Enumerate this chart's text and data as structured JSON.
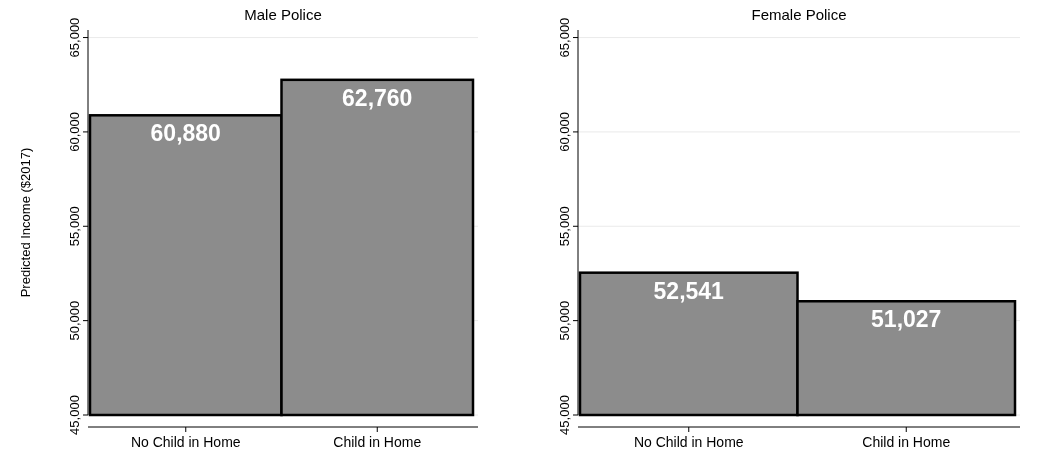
{
  "chart_data": [
    {
      "type": "bar",
      "title": "Male Police",
      "ylabel": "Predicted Income ($2017)",
      "categories": [
        "No Child in Home",
        "Child in Home"
      ],
      "values": [
        60880,
        62760
      ],
      "color": "#8c8c8c",
      "ylim": [
        45000,
        65400
      ],
      "yticks": [
        {
          "value": 45000,
          "label": "45,000"
        },
        {
          "value": 50000,
          "label": "50,000"
        },
        {
          "value": 55000,
          "label": "55,000"
        },
        {
          "value": 60000,
          "label": "60,000"
        },
        {
          "value": 65000,
          "label": "65,000"
        }
      ],
      "grid": "y",
      "value_labels": [
        "60,880",
        "62,760"
      ]
    },
    {
      "type": "bar",
      "title": "Female Police",
      "categories": [
        "No Child in Home",
        "Child in Home"
      ],
      "values": [
        52541,
        51027
      ],
      "color": "#8c8c8c",
      "ylim": [
        45000,
        65400
      ],
      "yticks": [
        {
          "value": 45000,
          "label": "45,000"
        },
        {
          "value": 50000,
          "label": "50,000"
        },
        {
          "value": 55000,
          "label": "55,000"
        },
        {
          "value": 60000,
          "label": "60,000"
        },
        {
          "value": 65000,
          "label": "65,000"
        }
      ],
      "grid": "y",
      "value_labels": [
        "52,541",
        "51,027"
      ]
    }
  ]
}
